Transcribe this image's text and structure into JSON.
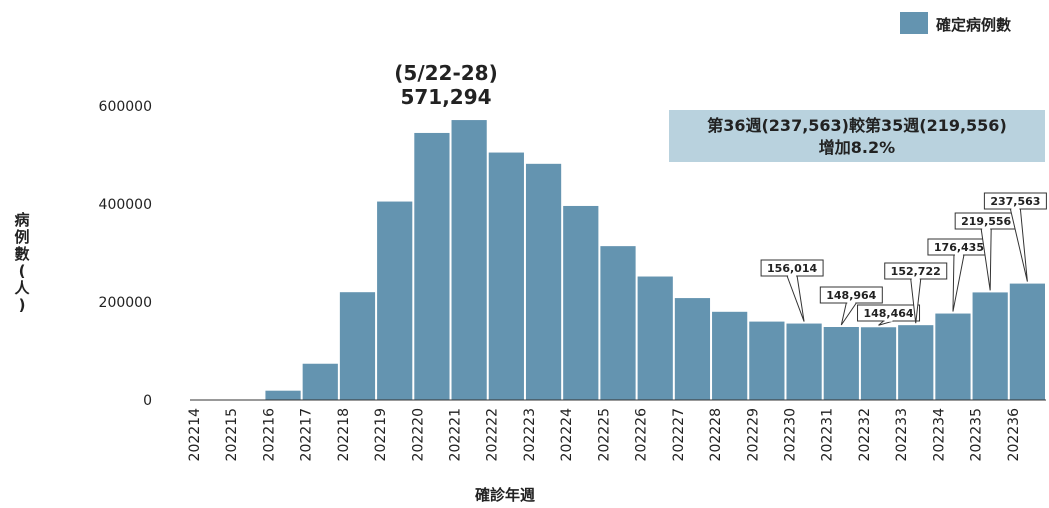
{
  "chart_data": {
    "type": "bar",
    "legend": {
      "label": "確定病例數",
      "color": "#6494b0",
      "position": "top-right"
    },
    "xlabel": "確診年週",
    "ylabel_chars": [
      "病",
      "例",
      "數",
      "(",
      "人",
      ")"
    ],
    "ylim": [
      0,
      600000
    ],
    "yticks": [
      0,
      200000,
      400000,
      600000
    ],
    "ytick_labels": [
      "0",
      "200000",
      "400000",
      "600000"
    ],
    "categories": [
      "202214",
      "202215",
      "202216",
      "202217",
      "202218",
      "202219",
      "202220",
      "202221",
      "202222",
      "202223",
      "202224",
      "202225",
      "202226",
      "202227",
      "202228",
      "202229",
      "202230",
      "202231",
      "202232",
      "202233",
      "202234",
      "202235",
      "202236"
    ],
    "values": [
      0,
      300,
      19000,
      74000,
      220000,
      405000,
      545000,
      571294,
      505000,
      482000,
      396000,
      314000,
      252000,
      208000,
      180000,
      160000,
      156014,
      148964,
      148464,
      152722,
      176435,
      219556,
      237563
    ],
    "peak_annotation": {
      "category": "202221",
      "line1": "(5/22-28)",
      "line2": "571,294"
    },
    "note": {
      "line1": "第36週(237,563)較第35週(219,556)",
      "line2": "增加8.2%",
      "background": "#b9d2de"
    },
    "callouts": [
      {
        "category": "202230",
        "label": "156,014"
      },
      {
        "category": "202231",
        "label": "148,964"
      },
      {
        "category": "202232",
        "label": "148,464"
      },
      {
        "category": "202233",
        "label": "152,722"
      },
      {
        "category": "202234",
        "label": "176,435"
      },
      {
        "category": "202235",
        "label": "219,556"
      },
      {
        "category": "202236",
        "label": "237,563"
      }
    ],
    "grid": false
  }
}
